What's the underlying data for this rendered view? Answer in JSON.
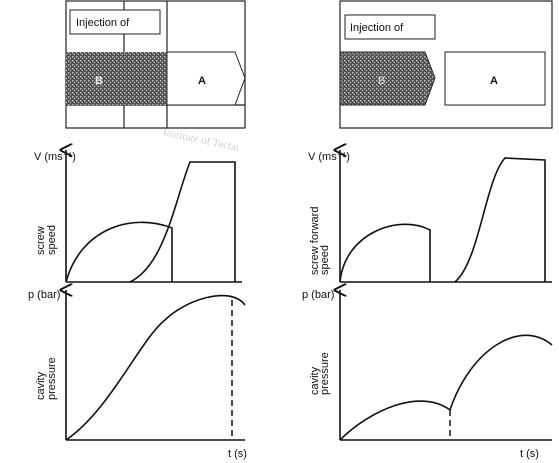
{
  "watermark": "Institute of Techn",
  "panels": [
    {
      "header": "Injection of",
      "segment_b": "B",
      "segment_a": "A",
      "velocity_label": "V (ms⁻¹)",
      "velocity_caption": [
        "screw",
        "speed"
      ],
      "pressure_label": "p (bar)",
      "pressure_caption": [
        "cavity",
        "pressure"
      ],
      "time_label": "t (s)"
    },
    {
      "header": "Injection of",
      "segment_b": "B",
      "segment_a": "A",
      "velocity_label": "V (ms⁻¹)",
      "velocity_caption": [
        "screw forward",
        "speed"
      ],
      "pressure_label": "p (bar)",
      "pressure_caption": [
        "cavity",
        "pressure"
      ],
      "time_label": "t (s)"
    }
  ]
}
